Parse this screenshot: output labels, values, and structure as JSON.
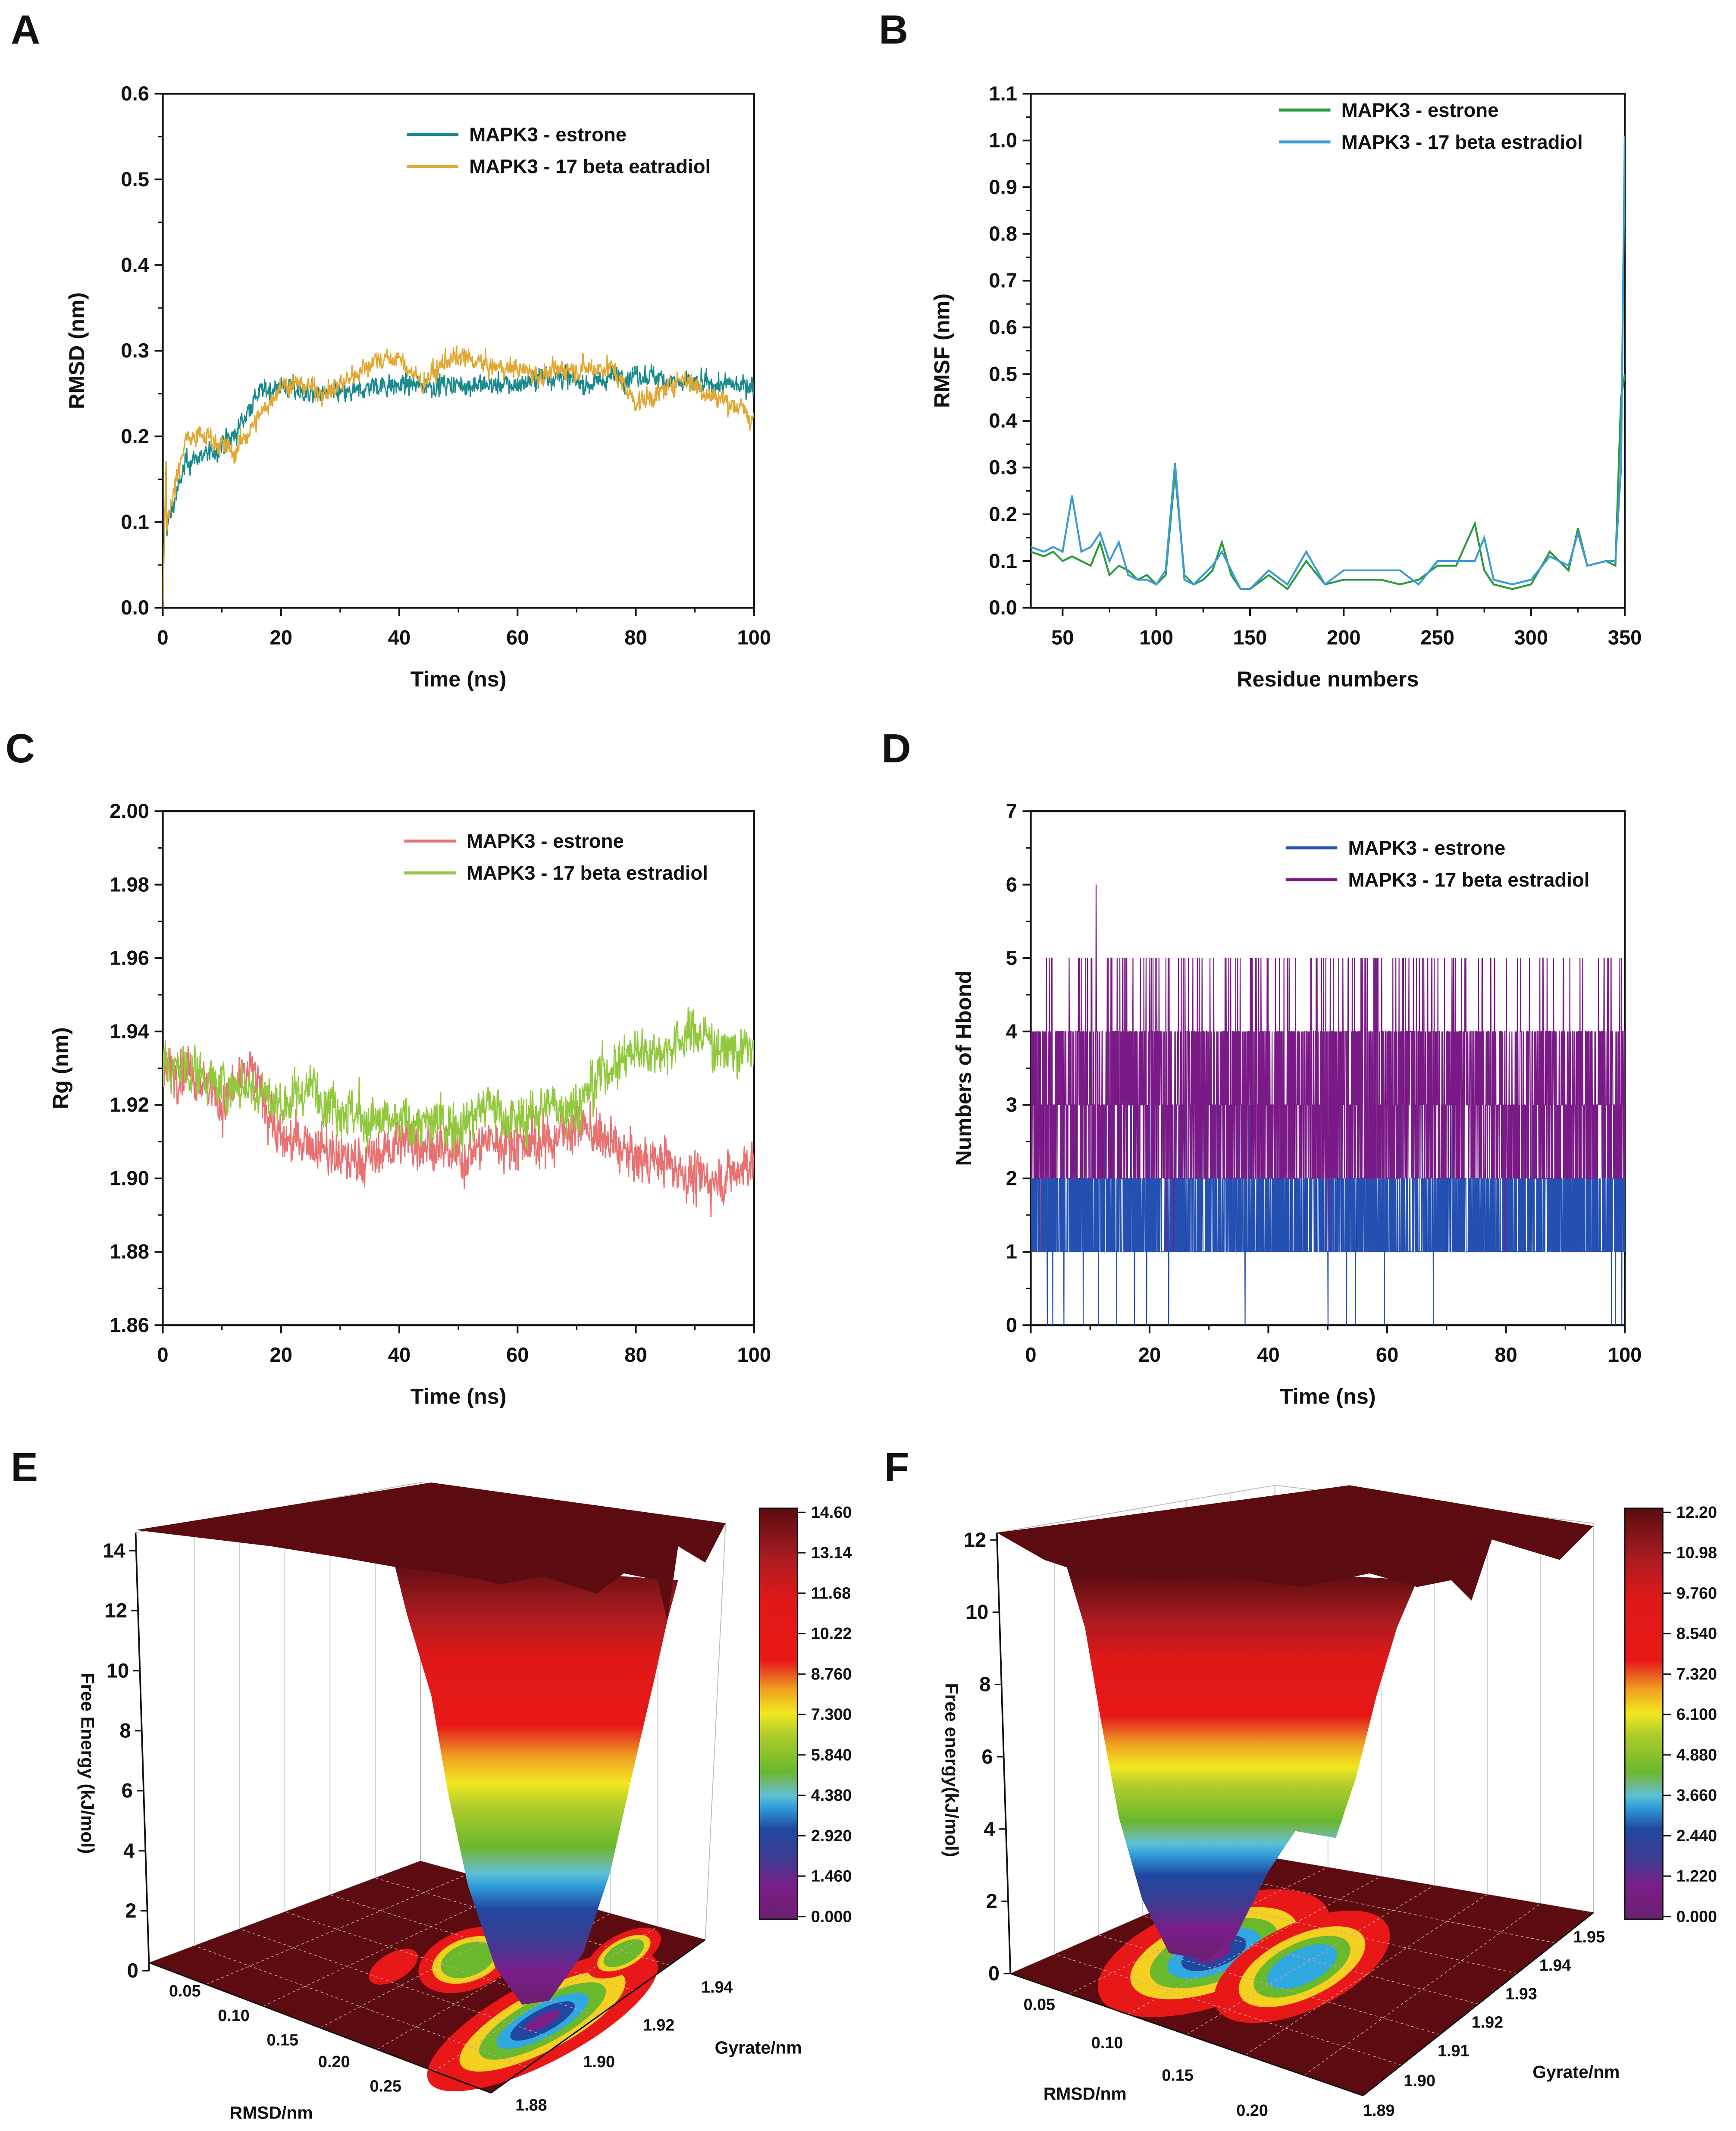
{
  "chart_data": [
    {
      "panel": "A",
      "type": "line",
      "xlabel": "Time (ns)",
      "ylabel": "RMSD (nm)",
      "xlim": [
        0,
        100
      ],
      "ylim": [
        0,
        0.6
      ],
      "xticks": [
        "0",
        "20",
        "40",
        "60",
        "80",
        "100"
      ],
      "yticks": [
        "0.0",
        "0.1",
        "0.2",
        "0.3",
        "0.4",
        "0.5",
        "0.6"
      ],
      "legend_position": "top-right",
      "x": [
        0,
        4,
        8,
        12,
        16,
        20,
        24,
        28,
        32,
        36,
        40,
        44,
        48,
        52,
        56,
        60,
        64,
        68,
        72,
        76,
        80,
        84,
        88,
        92,
        96,
        100
      ],
      "series": [
        {
          "name": "MAPK3 - estrone",
          "color": "#1b8a8c",
          "values": [
            0.08,
            0.17,
            0.18,
            0.2,
            0.25,
            0.26,
            0.25,
            0.25,
            0.25,
            0.26,
            0.26,
            0.26,
            0.26,
            0.26,
            0.26,
            0.26,
            0.27,
            0.27,
            0.26,
            0.27,
            0.27,
            0.27,
            0.26,
            0.26,
            0.26,
            0.26
          ]
        },
        {
          "name": "MAPK3 - 17 beta eatradiol",
          "color": "#e2a833",
          "values": [
            0.08,
            0.2,
            0.2,
            0.18,
            0.22,
            0.26,
            0.26,
            0.25,
            0.27,
            0.29,
            0.29,
            0.26,
            0.29,
            0.29,
            0.28,
            0.28,
            0.27,
            0.28,
            0.28,
            0.28,
            0.24,
            0.25,
            0.27,
            0.25,
            0.24,
            0.22
          ]
        }
      ]
    },
    {
      "panel": "B",
      "type": "line",
      "xlabel": "Residue numbers",
      "ylabel": "RMSF (nm)",
      "xlim": [
        33,
        350
      ],
      "ylim": [
        0,
        1.1
      ],
      "xticks": [
        "50",
        "100",
        "150",
        "200",
        "250",
        "300",
        "350"
      ],
      "yticks": [
        "0.0",
        "0.1",
        "0.2",
        "0.3",
        "0.4",
        "0.5",
        "0.6",
        "0.7",
        "0.8",
        "0.9",
        "1.0",
        "1.1"
      ],
      "legend_position": "top-right",
      "x": [
        33,
        40,
        45,
        50,
        55,
        60,
        65,
        70,
        75,
        80,
        85,
        90,
        95,
        100,
        105,
        110,
        115,
        120,
        125,
        130,
        135,
        140,
        145,
        150,
        160,
        170,
        180,
        190,
        200,
        220,
        230,
        240,
        250,
        260,
        270,
        275,
        280,
        290,
        300,
        310,
        320,
        325,
        330,
        340,
        345,
        348,
        350
      ],
      "series": [
        {
          "name": "MAPK3 - estrone",
          "color": "#2a9a3a",
          "values": [
            0.12,
            0.11,
            0.12,
            0.1,
            0.11,
            0.1,
            0.09,
            0.14,
            0.07,
            0.09,
            0.08,
            0.06,
            0.07,
            0.05,
            0.07,
            0.29,
            0.07,
            0.05,
            0.06,
            0.08,
            0.14,
            0.07,
            0.04,
            0.04,
            0.07,
            0.04,
            0.1,
            0.05,
            0.06,
            0.06,
            0.05,
            0.06,
            0.09,
            0.09,
            0.18,
            0.08,
            0.05,
            0.04,
            0.05,
            0.12,
            0.08,
            0.17,
            0.09,
            0.1,
            0.09,
            0.45,
            0.5
          ]
        },
        {
          "name": "MAPK3 - 17 beta estradiol",
          "color": "#3c9ad6",
          "values": [
            0.13,
            0.12,
            0.13,
            0.12,
            0.24,
            0.12,
            0.13,
            0.16,
            0.1,
            0.14,
            0.07,
            0.06,
            0.06,
            0.05,
            0.08,
            0.31,
            0.06,
            0.05,
            0.07,
            0.09,
            0.12,
            0.08,
            0.04,
            0.04,
            0.08,
            0.05,
            0.12,
            0.05,
            0.08,
            0.08,
            0.08,
            0.05,
            0.1,
            0.1,
            0.1,
            0.15,
            0.06,
            0.05,
            0.06,
            0.11,
            0.09,
            0.16,
            0.09,
            0.1,
            0.1,
            0.3,
            1.01
          ]
        }
      ]
    },
    {
      "panel": "C",
      "type": "line",
      "xlabel": "Time (ns)",
      "ylabel": "Rg (nm)",
      "xlim": [
        0,
        100
      ],
      "ylim": [
        1.86,
        2.0
      ],
      "xticks": [
        "0",
        "20",
        "40",
        "60",
        "80",
        "100"
      ],
      "yticks": [
        "1.86",
        "1.88",
        "1.90",
        "1.92",
        "1.94",
        "1.96",
        "1.98",
        "2.00"
      ],
      "legend_position": "top-right",
      "x": [
        0,
        5,
        10,
        15,
        20,
        25,
        30,
        35,
        40,
        45,
        50,
        55,
        60,
        65,
        70,
        75,
        80,
        85,
        90,
        95,
        100
      ],
      "series": [
        {
          "name": "MAPK3 - estrone",
          "color": "#e87272",
          "values": [
            1.93,
            1.93,
            1.92,
            1.93,
            1.91,
            1.91,
            1.905,
            1.905,
            1.91,
            1.91,
            1.905,
            1.91,
            1.91,
            1.91,
            1.915,
            1.91,
            1.905,
            1.905,
            1.9,
            1.9,
            1.905
          ]
        },
        {
          "name": "MAPK3 - 17 beta estradiol",
          "color": "#92c83e",
          "values": [
            1.93,
            1.93,
            1.925,
            1.925,
            1.92,
            1.925,
            1.92,
            1.915,
            1.915,
            1.915,
            1.915,
            1.92,
            1.915,
            1.92,
            1.92,
            1.93,
            1.935,
            1.935,
            1.94,
            1.935,
            1.935
          ]
        }
      ]
    },
    {
      "panel": "D",
      "type": "line",
      "xlabel": "Time (ns)",
      "ylabel": "Numbers of Hbond",
      "xlim": [
        0,
        100
      ],
      "ylim": [
        0,
        7
      ],
      "xticks": [
        "0",
        "20",
        "40",
        "60",
        "80",
        "100"
      ],
      "yticks": [
        "0",
        "1",
        "2",
        "3",
        "4",
        "5",
        "6",
        "7"
      ],
      "legend_position": "top-right",
      "series": [
        {
          "name": "MAPK3 - estrone",
          "color": "#2450b2",
          "typical_range": [
            1,
            2
          ],
          "min": 0,
          "max": 3
        },
        {
          "name": "MAPK3 - 17 beta estradiol",
          "color": "#7a1a86",
          "typical_range": [
            2,
            5
          ],
          "min": 1,
          "max": 6,
          "max_at_ns": 11
        }
      ]
    },
    {
      "panel": "E",
      "type": "surface3d",
      "xlabel": "RMSD/nm",
      "ylabel": "Gyrate/nm",
      "zlabel": "Free Energy (kJ/mol)",
      "xticks": [
        "0.05",
        "0.10",
        "0.15",
        "0.20",
        "0.25"
      ],
      "yticks": [
        "1.88",
        "1.90",
        "1.92",
        "1.94"
      ],
      "zticks": [
        "0",
        "2",
        "4",
        "6",
        "8",
        "10",
        "12",
        "14"
      ],
      "zlim": [
        0,
        14.6
      ],
      "colorbar_ticks": [
        "14.60",
        "13.14",
        "11.68",
        "10.22",
        "8.760",
        "7.300",
        "5.840",
        "4.380",
        "2.920",
        "1.460",
        "0.000"
      ]
    },
    {
      "panel": "F",
      "type": "surface3d",
      "xlabel": "RMSD/nm",
      "ylabel": "Gyrate/nm",
      "zlabel": "Free energy(kJ/mol)",
      "xticks": [
        "0.05",
        "0.10",
        "0.15",
        "0.20"
      ],
      "yticks": [
        "1.89",
        "1.90",
        "1.91",
        "1.92",
        "1.93",
        "1.94",
        "1.95"
      ],
      "zticks": [
        "0",
        "2",
        "4",
        "6",
        "8",
        "10",
        "12"
      ],
      "zlim": [
        0,
        12.2
      ],
      "colorbar_ticks": [
        "12.20",
        "10.98",
        "9.760",
        "8.540",
        "7.320",
        "6.100",
        "4.880",
        "3.660",
        "2.440",
        "1.220",
        "0.000"
      ]
    }
  ],
  "panel_letters": [
    "A",
    "B",
    "C",
    "D",
    "E",
    "F"
  ]
}
